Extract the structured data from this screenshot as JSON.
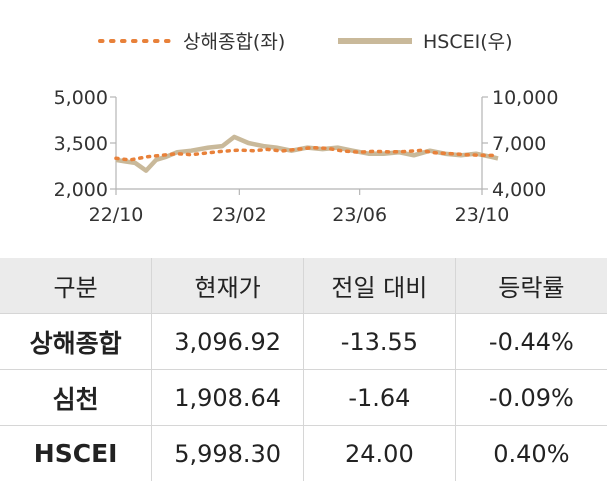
{
  "chart_data": {
    "type": "line",
    "legend": [
      {
        "name": "상해종합(좌)",
        "style": "dotted",
        "color": "#e8813a"
      },
      {
        "name": "HSCEI(우)",
        "style": "solid",
        "color": "#c9b99a"
      }
    ],
    "legend_position": "top-center",
    "grid": false,
    "x_ticks": [
      "22/10",
      "23/02",
      "23/06",
      "23/10"
    ],
    "x_range": [
      "2022-10",
      "2023-10"
    ],
    "y_left": {
      "min": 2000,
      "max": 5000,
      "ticks": [
        "5,000",
        "3,500",
        "2,000"
      ],
      "tick_values": [
        5000,
        3500,
        2000
      ]
    },
    "y_right": {
      "min": 4000,
      "max": 10000,
      "ticks": [
        "10,000",
        "7,000",
        "4,000"
      ],
      "tick_values": [
        10000,
        7000,
        4000
      ]
    },
    "series": [
      {
        "name": "상해종합(좌)",
        "axis": "left",
        "color": "#e8813a",
        "x": [
          "2022-10-01",
          "2022-10-15",
          "2022-11-01",
          "2022-11-15",
          "2022-12-01",
          "2022-12-15",
          "2023-01-01",
          "2023-01-15",
          "2023-02-01",
          "2023-02-15",
          "2023-03-01",
          "2023-03-15",
          "2023-04-01",
          "2023-04-15",
          "2023-05-01",
          "2023-05-15",
          "2023-06-01",
          "2023-06-15",
          "2023-07-01",
          "2023-07-15",
          "2023-08-01",
          "2023-08-15",
          "2023-09-01",
          "2023-09-15",
          "2023-10-01",
          "2023-10-15"
        ],
        "values": [
          3000,
          2950,
          3050,
          3100,
          3150,
          3120,
          3180,
          3230,
          3270,
          3250,
          3290,
          3240,
          3300,
          3350,
          3320,
          3240,
          3200,
          3230,
          3210,
          3220,
          3260,
          3180,
          3150,
          3120,
          3100,
          3097
        ]
      },
      {
        "name": "HSCEI(우)",
        "axis": "right",
        "color": "#c9b99a",
        "x": [
          "2022-10-01",
          "2022-10-10",
          "2022-10-20",
          "2022-10-31",
          "2022-11-10",
          "2022-11-20",
          "2022-12-01",
          "2022-12-15",
          "2023-01-01",
          "2023-01-15",
          "2023-01-27",
          "2023-02-10",
          "2023-02-25",
          "2023-03-10",
          "2023-03-25",
          "2023-04-10",
          "2023-04-25",
          "2023-05-10",
          "2023-05-25",
          "2023-06-10",
          "2023-06-25",
          "2023-07-10",
          "2023-07-25",
          "2023-08-10",
          "2023-08-25",
          "2023-09-10",
          "2023-09-25",
          "2023-10-10",
          "2023-10-17"
        ],
        "values": [
          5900,
          5800,
          5700,
          5200,
          5900,
          6100,
          6400,
          6500,
          6700,
          6800,
          7400,
          7000,
          6800,
          6700,
          6500,
          6700,
          6600,
          6700,
          6500,
          6300,
          6300,
          6400,
          6200,
          6500,
          6300,
          6200,
          6300,
          6100,
          5998
        ]
      }
    ]
  },
  "table": {
    "headers": [
      "구분",
      "현재가",
      "전일 대비",
      "등락률"
    ],
    "rows": [
      {
        "name": "상해종합",
        "price": "3,096.92",
        "change": "-13.55",
        "rate": "-0.44%"
      },
      {
        "name": "심천",
        "price": "1,908.64",
        "change": "-1.64",
        "rate": "-0.09%"
      },
      {
        "name": "HSCEI",
        "price": "5,998.30",
        "change": "24.00",
        "rate": "0.40%"
      }
    ],
    "header_bg": "#ebebeb"
  }
}
